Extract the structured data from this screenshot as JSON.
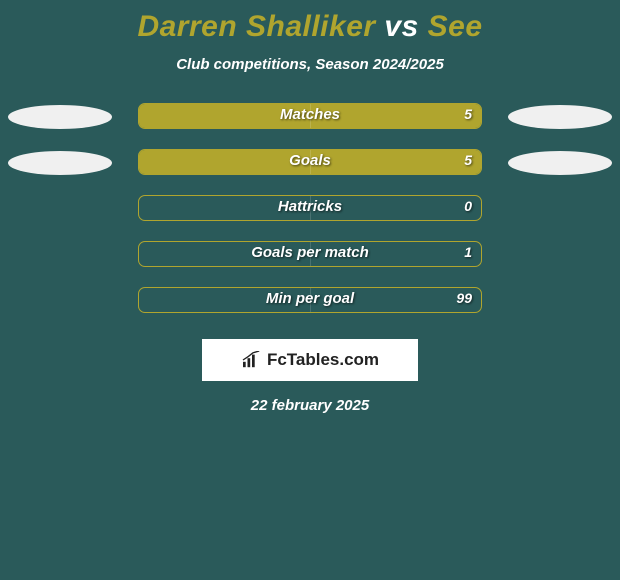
{
  "title": {
    "p1": "Darren Shalliker",
    "vs": "vs",
    "p2": "See"
  },
  "subtitle": "Club competitions, Season 2024/2025",
  "colors": {
    "background": "#2a5a5a",
    "accent": "#b0a52e",
    "text": "#ffffff",
    "ellipse": "#f0f0f0",
    "logo_bg": "#ffffff",
    "logo_text": "#222222"
  },
  "ellipse_size": {
    "w": 104,
    "h": 24
  },
  "bar_outer_width": 344,
  "stats": [
    {
      "label": "Matches",
      "left_val": "",
      "right_val": "5",
      "left_fill_pct": 50,
      "right_fill_pct": 50,
      "show_left_ellipse": true,
      "show_right_ellipse": true
    },
    {
      "label": "Goals",
      "left_val": "",
      "right_val": "5",
      "left_fill_pct": 50,
      "right_fill_pct": 50,
      "show_left_ellipse": true,
      "show_right_ellipse": true
    },
    {
      "label": "Hattricks",
      "left_val": "",
      "right_val": "0",
      "left_fill_pct": 0,
      "right_fill_pct": 0,
      "show_left_ellipse": false,
      "show_right_ellipse": false
    },
    {
      "label": "Goals per match",
      "left_val": "",
      "right_val": "1",
      "left_fill_pct": 0,
      "right_fill_pct": 0,
      "show_left_ellipse": false,
      "show_right_ellipse": false
    },
    {
      "label": "Min per goal",
      "left_val": "",
      "right_val": "99",
      "left_fill_pct": 0,
      "right_fill_pct": 0,
      "show_left_ellipse": false,
      "show_right_ellipse": false
    }
  ],
  "logo_text": "FcTables.com",
  "date": "22 february 2025"
}
